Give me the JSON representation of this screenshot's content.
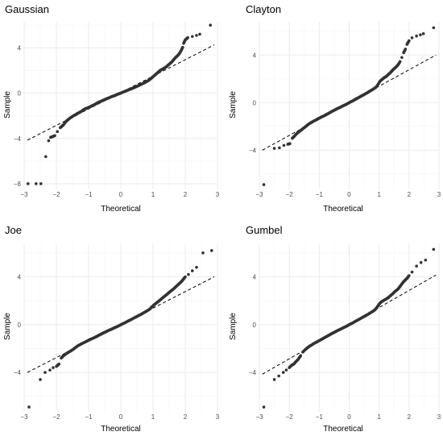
{
  "chart_data": [
    {
      "type": "scatter",
      "title": "Gaussian",
      "xlabel": "Theoretical",
      "ylabel": "Sample",
      "xlim": [
        -3,
        3
      ],
      "ylim": [
        -8.5,
        6.3
      ],
      "xticks": [
        -3,
        -2,
        -1,
        0,
        1,
        2,
        3
      ],
      "yticks": [
        -8,
        -4,
        0,
        4
      ],
      "grid": true,
      "reference_line": {
        "slope": 1.45,
        "intercept": 0.05
      },
      "points": [
        [
          -2.88,
          -8.0
        ],
        [
          -2.63,
          -8.0
        ],
        [
          -2.48,
          -8.0
        ],
        [
          -2.33,
          -5.6
        ],
        [
          -2.24,
          -4.2
        ],
        [
          -2.18,
          -3.9
        ],
        [
          -2.12,
          -3.85
        ],
        [
          -2.05,
          -3.75
        ],
        [
          -1.97,
          -3.4
        ],
        [
          -1.88,
          -3.05
        ],
        [
          -1.82,
          -2.9
        ],
        [
          -1.78,
          -2.8
        ],
        [
          -1.7,
          -2.5
        ],
        [
          -1.62,
          -2.3
        ],
        [
          -1.55,
          -2.15
        ],
        [
          -1.47,
          -2.0
        ],
        [
          -1.4,
          -1.9
        ],
        [
          -1.35,
          -1.8
        ],
        [
          -1.28,
          -1.7
        ],
        [
          -1.22,
          -1.6
        ],
        [
          -1.15,
          -1.45
        ],
        [
          -1.08,
          -1.35
        ],
        [
          -1.02,
          -1.3
        ],
        [
          -0.95,
          -1.2
        ],
        [
          -0.88,
          -1.1
        ],
        [
          -0.82,
          -1.02
        ],
        [
          -0.76,
          -0.92
        ],
        [
          -0.7,
          -0.82
        ],
        [
          -0.64,
          -0.75
        ],
        [
          -0.58,
          -0.67
        ],
        [
          -0.52,
          -0.6
        ],
        [
          -0.46,
          -0.52
        ],
        [
          -0.4,
          -0.45
        ],
        [
          -0.34,
          -0.38
        ],
        [
          -0.28,
          -0.3
        ],
        [
          -0.22,
          -0.25
        ],
        [
          -0.16,
          -0.18
        ],
        [
          -0.1,
          -0.1
        ],
        [
          -0.04,
          -0.04
        ],
        [
          0.02,
          0.03
        ],
        [
          0.08,
          0.1
        ],
        [
          0.14,
          0.17
        ],
        [
          0.2,
          0.24
        ],
        [
          0.26,
          0.31
        ],
        [
          0.32,
          0.38
        ],
        [
          0.38,
          0.45
        ],
        [
          0.44,
          0.52
        ],
        [
          0.5,
          0.6
        ],
        [
          0.56,
          0.68
        ],
        [
          0.62,
          0.76
        ],
        [
          0.68,
          0.84
        ],
        [
          0.74,
          0.93
        ],
        [
          0.8,
          1.02
        ],
        [
          0.86,
          1.12
        ],
        [
          0.92,
          1.25
        ],
        [
          0.98,
          1.4
        ],
        [
          1.04,
          1.55
        ],
        [
          1.1,
          1.7
        ],
        [
          1.16,
          1.85
        ],
        [
          1.22,
          2.0
        ],
        [
          1.28,
          2.1
        ],
        [
          1.34,
          2.2
        ],
        [
          1.4,
          2.3
        ],
        [
          1.46,
          2.45
        ],
        [
          1.52,
          2.6
        ],
        [
          1.58,
          2.75
        ],
        [
          1.64,
          2.95
        ],
        [
          1.7,
          3.15
        ],
        [
          1.76,
          3.3
        ],
        [
          1.82,
          3.5
        ],
        [
          1.88,
          3.8
        ],
        [
          1.92,
          4.05
        ],
        [
          1.95,
          4.4
        ],
        [
          2.0,
          4.7
        ],
        [
          2.08,
          4.9
        ],
        [
          2.22,
          5.0
        ],
        [
          2.35,
          5.1
        ],
        [
          2.45,
          5.2
        ],
        [
          2.78,
          6.0
        ]
      ]
    },
    {
      "type": "scatter",
      "title": "Clayton",
      "xlabel": "Theoretical",
      "ylabel": "Sample",
      "xlim": [
        -3,
        3
      ],
      "ylim": [
        -7.3,
        6.8
      ],
      "xticks": [
        -3,
        -2,
        -1,
        0,
        1,
        2,
        3
      ],
      "yticks": [
        -4,
        0,
        4
      ],
      "grid": true,
      "reference_line": {
        "slope": 1.38,
        "intercept": 0.0
      },
      "points": [
        [
          -2.85,
          -6.9
        ],
        [
          -2.5,
          -3.85
        ],
        [
          -2.33,
          -3.8
        ],
        [
          -2.18,
          -3.6
        ],
        [
          -2.05,
          -3.5
        ],
        [
          -1.98,
          -3.45
        ],
        [
          -1.9,
          -3.0
        ],
        [
          -1.82,
          -2.8
        ],
        [
          -1.75,
          -2.6
        ],
        [
          -1.68,
          -2.45
        ],
        [
          -1.62,
          -2.35
        ],
        [
          -1.55,
          -2.2
        ],
        [
          -1.47,
          -2.05
        ],
        [
          -1.4,
          -1.9
        ],
        [
          -1.32,
          -1.75
        ],
        [
          -1.25,
          -1.65
        ],
        [
          -1.18,
          -1.55
        ],
        [
          -1.1,
          -1.45
        ],
        [
          -1.03,
          -1.35
        ],
        [
          -0.96,
          -1.25
        ],
        [
          -0.9,
          -1.18
        ],
        [
          -0.83,
          -1.1
        ],
        [
          -0.76,
          -1.0
        ],
        [
          -0.7,
          -0.92
        ],
        [
          -0.63,
          -0.82
        ],
        [
          -0.56,
          -0.72
        ],
        [
          -0.5,
          -0.65
        ],
        [
          -0.43,
          -0.55
        ],
        [
          -0.36,
          -0.46
        ],
        [
          -0.3,
          -0.4
        ],
        [
          -0.23,
          -0.3
        ],
        [
          -0.16,
          -0.22
        ],
        [
          -0.1,
          -0.15
        ],
        [
          -0.03,
          -0.05
        ],
        [
          0.04,
          0.05
        ],
        [
          0.1,
          0.12
        ],
        [
          0.17,
          0.22
        ],
        [
          0.24,
          0.32
        ],
        [
          0.3,
          0.4
        ],
        [
          0.37,
          0.5
        ],
        [
          0.44,
          0.6
        ],
        [
          0.5,
          0.68
        ],
        [
          0.57,
          0.78
        ],
        [
          0.64,
          0.88
        ],
        [
          0.7,
          0.98
        ],
        [
          0.77,
          1.08
        ],
        [
          0.84,
          1.2
        ],
        [
          0.9,
          1.3
        ],
        [
          0.97,
          1.55
        ],
        [
          1.03,
          1.8
        ],
        [
          1.1,
          1.95
        ],
        [
          1.17,
          2.1
        ],
        [
          1.24,
          2.2
        ],
        [
          1.3,
          2.35
        ],
        [
          1.37,
          2.5
        ],
        [
          1.44,
          2.7
        ],
        [
          1.5,
          2.85
        ],
        [
          1.57,
          3.0
        ],
        [
          1.64,
          3.2
        ],
        [
          1.7,
          3.45
        ],
        [
          1.76,
          3.8
        ],
        [
          1.82,
          4.2
        ],
        [
          1.88,
          4.5
        ],
        [
          1.93,
          4.9
        ],
        [
          2.0,
          5.2
        ],
        [
          2.1,
          5.45
        ],
        [
          2.25,
          5.6
        ],
        [
          2.38,
          5.7
        ],
        [
          2.48,
          5.8
        ],
        [
          2.82,
          6.3
        ]
      ]
    },
    {
      "type": "scatter",
      "title": "Joe",
      "xlabel": "Theoretical",
      "ylabel": "Sample",
      "xlim": [
        -3,
        3
      ],
      "ylim": [
        -7.3,
        6.8
      ],
      "xticks": [
        -3,
        -2,
        -1,
        0,
        1,
        2,
        3
      ],
      "yticks": [
        -4,
        0,
        4
      ],
      "grid": true,
      "reference_line": {
        "slope": 1.38,
        "intercept": 0.0
      },
      "points": [
        [
          -2.85,
          -6.9
        ],
        [
          -2.5,
          -4.6
        ],
        [
          -2.35,
          -4.0
        ],
        [
          -2.2,
          -3.8
        ],
        [
          -2.1,
          -3.6
        ],
        [
          -2.0,
          -3.5
        ],
        [
          -1.92,
          -3.3
        ],
        [
          -1.85,
          -2.8
        ],
        [
          -1.78,
          -2.6
        ],
        [
          -1.7,
          -2.45
        ],
        [
          -1.62,
          -2.3
        ],
        [
          -1.55,
          -2.2
        ],
        [
          -1.47,
          -2.05
        ],
        [
          -1.4,
          -1.9
        ],
        [
          -1.32,
          -1.75
        ],
        [
          -1.25,
          -1.65
        ],
        [
          -1.18,
          -1.55
        ],
        [
          -1.1,
          -1.45
        ],
        [
          -1.03,
          -1.35
        ],
        [
          -0.96,
          -1.25
        ],
        [
          -0.9,
          -1.18
        ],
        [
          -0.83,
          -1.1
        ],
        [
          -0.76,
          -1.0
        ],
        [
          -0.7,
          -0.92
        ],
        [
          -0.63,
          -0.82
        ],
        [
          -0.56,
          -0.72
        ],
        [
          -0.5,
          -0.65
        ],
        [
          -0.43,
          -0.55
        ],
        [
          -0.36,
          -0.46
        ],
        [
          -0.3,
          -0.4
        ],
        [
          -0.23,
          -0.3
        ],
        [
          -0.16,
          -0.22
        ],
        [
          -0.1,
          -0.15
        ],
        [
          -0.03,
          -0.05
        ],
        [
          0.04,
          0.05
        ],
        [
          0.1,
          0.12
        ],
        [
          0.17,
          0.22
        ],
        [
          0.24,
          0.32
        ],
        [
          0.3,
          0.4
        ],
        [
          0.37,
          0.5
        ],
        [
          0.44,
          0.6
        ],
        [
          0.5,
          0.68
        ],
        [
          0.57,
          0.78
        ],
        [
          0.64,
          0.88
        ],
        [
          0.7,
          0.98
        ],
        [
          0.77,
          1.08
        ],
        [
          0.84,
          1.2
        ],
        [
          0.9,
          1.3
        ],
        [
          0.97,
          1.5
        ],
        [
          1.03,
          1.65
        ],
        [
          1.1,
          1.8
        ],
        [
          1.17,
          1.95
        ],
        [
          1.24,
          2.1
        ],
        [
          1.3,
          2.25
        ],
        [
          1.37,
          2.4
        ],
        [
          1.44,
          2.55
        ],
        [
          1.5,
          2.7
        ],
        [
          1.57,
          2.85
        ],
        [
          1.64,
          3.0
        ],
        [
          1.7,
          3.15
        ],
        [
          1.76,
          3.3
        ],
        [
          1.82,
          3.45
        ],
        [
          1.88,
          3.6
        ],
        [
          1.94,
          3.8
        ],
        [
          2.0,
          4.0
        ],
        [
          2.1,
          4.2
        ],
        [
          2.22,
          4.5
        ],
        [
          2.35,
          4.8
        ],
        [
          2.55,
          6.0
        ],
        [
          2.82,
          6.2
        ]
      ]
    },
    {
      "type": "scatter",
      "title": "Gumbel",
      "xlabel": "Theoretical",
      "ylabel": "Sample",
      "xlim": [
        -3,
        3
      ],
      "ylim": [
        -7.3,
        6.8
      ],
      "xticks": [
        -3,
        -2,
        -1,
        0,
        1,
        2,
        3
      ],
      "yticks": [
        -4,
        0,
        4
      ],
      "grid": true,
      "reference_line": {
        "slope": 1.43,
        "intercept": 0.0
      },
      "points": [
        [
          -2.85,
          -6.9
        ],
        [
          -2.5,
          -4.6
        ],
        [
          -2.35,
          -4.3
        ],
        [
          -2.2,
          -4.0
        ],
        [
          -2.1,
          -3.8
        ],
        [
          -2.0,
          -3.6
        ],
        [
          -1.92,
          -3.4
        ],
        [
          -1.85,
          -3.3
        ],
        [
          -1.78,
          -3.1
        ],
        [
          -1.7,
          -2.9
        ],
        [
          -1.62,
          -2.6
        ],
        [
          -1.55,
          -2.3
        ],
        [
          -1.47,
          -2.1
        ],
        [
          -1.4,
          -1.95
        ],
        [
          -1.32,
          -1.8
        ],
        [
          -1.25,
          -1.7
        ],
        [
          -1.18,
          -1.58
        ],
        [
          -1.1,
          -1.48
        ],
        [
          -1.03,
          -1.38
        ],
        [
          -0.96,
          -1.28
        ],
        [
          -0.9,
          -1.2
        ],
        [
          -0.83,
          -1.1
        ],
        [
          -0.76,
          -1.0
        ],
        [
          -0.7,
          -0.92
        ],
        [
          -0.63,
          -0.82
        ],
        [
          -0.56,
          -0.72
        ],
        [
          -0.5,
          -0.65
        ],
        [
          -0.43,
          -0.55
        ],
        [
          -0.36,
          -0.46
        ],
        [
          -0.3,
          -0.4
        ],
        [
          -0.23,
          -0.3
        ],
        [
          -0.16,
          -0.22
        ],
        [
          -0.1,
          -0.15
        ],
        [
          -0.03,
          -0.05
        ],
        [
          0.04,
          0.05
        ],
        [
          0.1,
          0.12
        ],
        [
          0.17,
          0.22
        ],
        [
          0.24,
          0.32
        ],
        [
          0.3,
          0.4
        ],
        [
          0.37,
          0.5
        ],
        [
          0.44,
          0.6
        ],
        [
          0.5,
          0.68
        ],
        [
          0.57,
          0.78
        ],
        [
          0.64,
          0.88
        ],
        [
          0.7,
          0.98
        ],
        [
          0.77,
          1.08
        ],
        [
          0.84,
          1.2
        ],
        [
          0.9,
          1.35
        ],
        [
          0.97,
          1.6
        ],
        [
          1.03,
          1.8
        ],
        [
          1.1,
          1.95
        ],
        [
          1.17,
          2.05
        ],
        [
          1.24,
          2.15
        ],
        [
          1.3,
          2.25
        ],
        [
          1.37,
          2.4
        ],
        [
          1.44,
          2.55
        ],
        [
          1.5,
          2.7
        ],
        [
          1.57,
          2.85
        ],
        [
          1.64,
          3.0
        ],
        [
          1.7,
          3.2
        ],
        [
          1.76,
          3.4
        ],
        [
          1.82,
          3.6
        ],
        [
          1.88,
          3.75
        ],
        [
          1.94,
          3.9
        ],
        [
          2.0,
          4.1
        ],
        [
          2.1,
          4.4
        ],
        [
          2.25,
          4.9
        ],
        [
          2.4,
          5.2
        ],
        [
          2.55,
          5.4
        ],
        [
          2.82,
          6.3
        ]
      ]
    }
  ],
  "style": {
    "point_color": "#333333",
    "major_grid_color": "#ebebeb",
    "minor_grid_color": "#f5f5f5",
    "line_color": "#000000"
  }
}
